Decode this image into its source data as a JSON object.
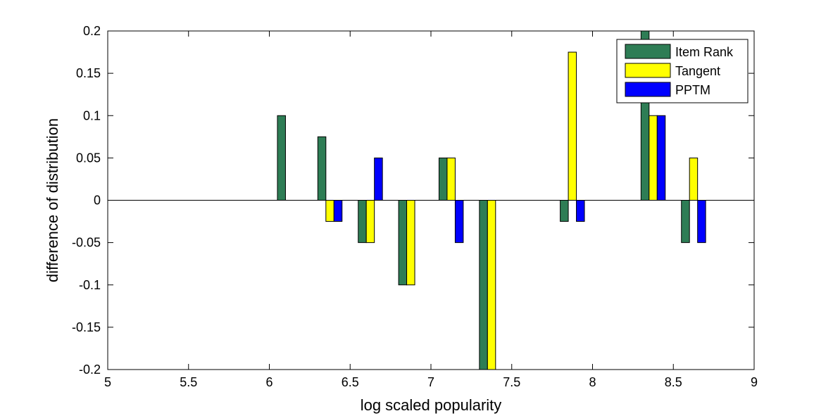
{
  "chart_data": {
    "type": "bar",
    "xlabel": "log scaled popularity",
    "ylabel": "difference of distribution",
    "xlim": [
      5,
      9
    ],
    "ylim": [
      -0.2,
      0.2
    ],
    "x_ticks": [
      "5",
      "5.5",
      "6",
      "6.5",
      "7",
      "7.5",
      "8",
      "8.5",
      "9"
    ],
    "y_ticks": [
      "-0.2",
      "-0.15",
      "-0.1",
      "-0.05",
      "0",
      "0.05",
      "0.1",
      "0.15",
      "0.2"
    ],
    "x_tick_values": [
      5,
      5.5,
      6,
      6.5,
      7,
      7.5,
      8,
      8.5,
      9
    ],
    "y_tick_values": [
      -0.2,
      -0.15,
      -0.1,
      -0.05,
      0,
      0.05,
      0.1,
      0.15,
      0.2
    ],
    "x": [
      6.125,
      6.375,
      6.625,
      6.875,
      7.125,
      7.375,
      7.875,
      8.375,
      8.625
    ],
    "bar_width": 0.05,
    "grid": false,
    "legend_position": "top-right",
    "series": [
      {
        "name": "Item Rank",
        "color": "#2e7d55",
        "values": [
          0.1,
          0.075,
          -0.05,
          -0.1,
          0.05,
          -0.2,
          -0.025,
          0.2,
          -0.05
        ]
      },
      {
        "name": "Tangent",
        "color": "#ffff00",
        "values": [
          0,
          -0.025,
          -0.05,
          -0.1,
          0.05,
          -0.2,
          0.175,
          0.1,
          0.05
        ]
      },
      {
        "name": "PPTM",
        "color": "#0000ff",
        "values": [
          0,
          -0.025,
          0.05,
          0,
          -0.05,
          0,
          -0.025,
          0.1,
          -0.05
        ]
      }
    ]
  }
}
